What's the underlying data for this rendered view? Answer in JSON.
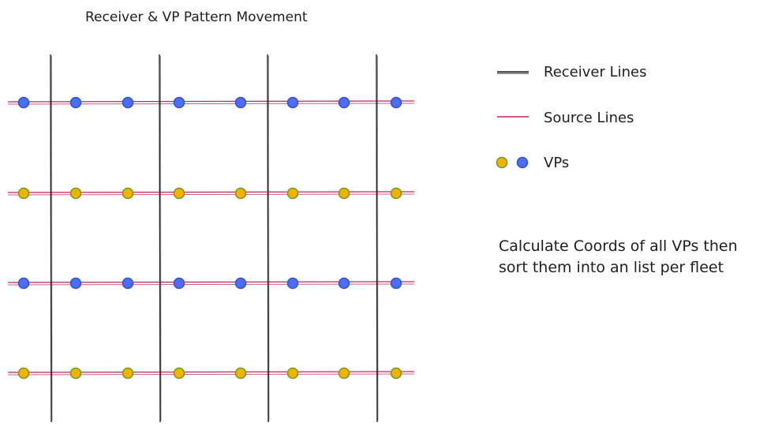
{
  "title": "Receiver & VP Pattern Movement",
  "legend": {
    "receiver_lines": "Receiver Lines",
    "source_lines": "Source Lines",
    "vps": "VPs"
  },
  "note": {
    "line1": "Calculate Coords of all VPs then",
    "line2": "sort them into an  list per fleet"
  },
  "colors": {
    "receiver_line": "#1e1e1e",
    "source_line": "#c2255c",
    "vp_blue": "#4c6ef5",
    "vp_blue_stroke": "#364fc7",
    "vp_yellow": "#f0b400",
    "vp_yellow_stroke": "#6a9a23"
  },
  "grid": {
    "receiver_line_count": 4,
    "source_line_count": 4,
    "vps_per_source_line": 8,
    "source_line_vp_colors": [
      "blue",
      "yellow",
      "blue",
      "yellow"
    ]
  }
}
